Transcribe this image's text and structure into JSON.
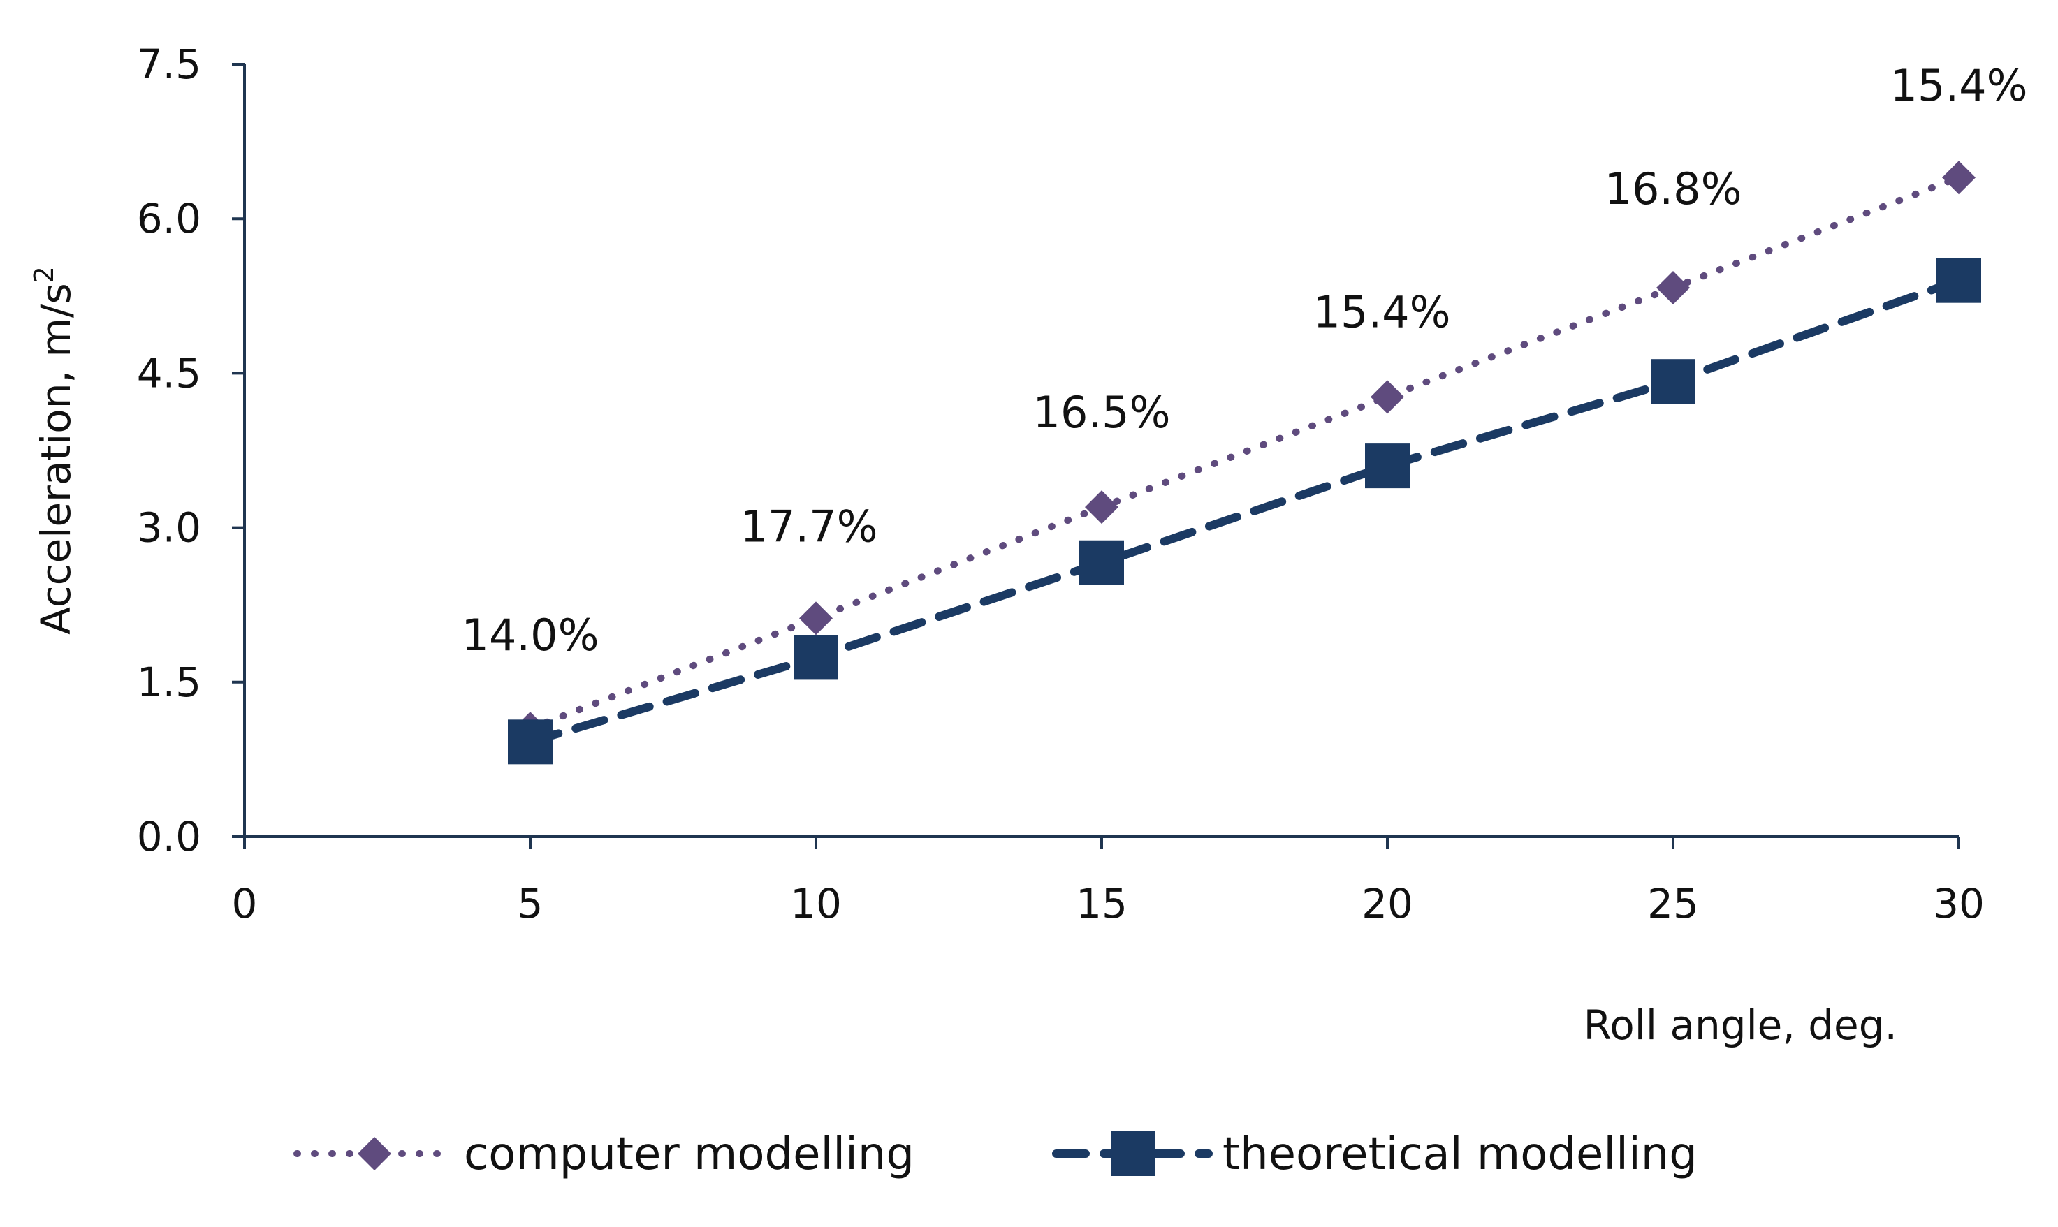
{
  "chart_data": {
    "type": "line",
    "title": "",
    "xlabel": "Roll angle, deg.",
    "ylabel_main": "Acceleration, m/s",
    "ylabel_superscript": "2",
    "x_ticks": [
      "0",
      "5",
      "10",
      "15",
      "20",
      "25",
      "30"
    ],
    "y_ticks": [
      "0.0",
      "1.5",
      "3.0",
      "4.5",
      "6.0",
      "7.5"
    ],
    "xlim": [
      0,
      30
    ],
    "ylim": [
      0,
      7.5
    ],
    "grid": false,
    "legend_position": "bottom",
    "x": [
      5,
      10,
      15,
      20,
      25,
      30
    ],
    "series": [
      {
        "name": "computer modelling",
        "values": [
          1.05,
          2.12,
          3.2,
          4.27,
          5.33,
          6.4
        ],
        "color": "#5f4b7e",
        "marker": "diamond",
        "line_style": "dotted"
      },
      {
        "name": "theoretical modelling",
        "values": [
          0.92,
          1.74,
          2.66,
          3.6,
          4.42,
          5.4
        ],
        "color": "#1b3a63",
        "marker": "square",
        "line_style": "dashed"
      }
    ],
    "annotations": [
      "14.0%",
      "17.7%",
      "16.5%",
      "15.4%",
      "16.8%",
      "15.4%"
    ]
  }
}
